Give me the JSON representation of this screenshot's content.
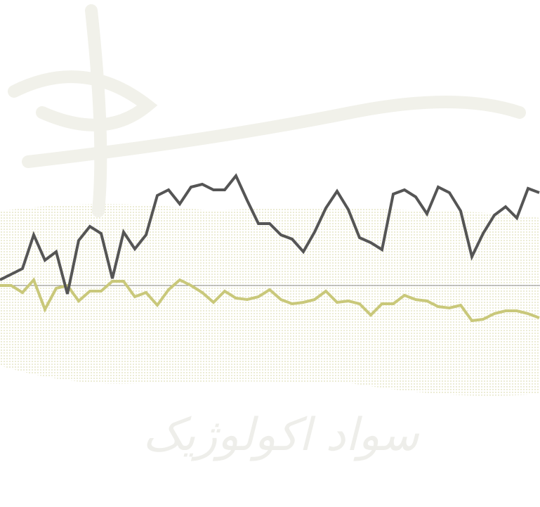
{
  "chart_data": {
    "type": "line",
    "watermark": "سواد اکولوژیک",
    "categories": [
      null,
      null,
      null,
      null,
      null,
      null,
      null,
      null,
      null,
      null,
      null,
      null,
      null,
      null,
      null,
      null,
      null,
      null,
      null,
      null,
      null,
      null,
      null,
      null,
      null,
      null,
      null,
      null,
      null,
      null,
      null,
      null,
      null,
      null,
      null,
      null,
      null,
      null,
      null,
      null,
      null,
      null,
      null,
      null,
      null,
      null,
      null,
      null,
      null
    ],
    "series": [
      {
        "color": "#555555",
        "values": [
          0.8,
          1.6,
          2.4,
          7.2,
          3.6,
          4.8,
          -1.2,
          6.4,
          8.4,
          7.4,
          1.0,
          7.6,
          5.2,
          7.2,
          12.8,
          13.6,
          11.6,
          14.0,
          14.4,
          13.6,
          13.6,
          15.6,
          12.1,
          8.8,
          8.8,
          7.2,
          6.6,
          4.8,
          7.6,
          11.0,
          13.4,
          10.8,
          6.8,
          6.1,
          5.1,
          13.0,
          13.6,
          12.6,
          10.2,
          14.0,
          13.2,
          10.6,
          4.1,
          7.4,
          10.0,
          11.2,
          9.6,
          13.8,
          13.2
        ]
      },
      {
        "color": "#c9c87a",
        "values": [
          0,
          0,
          -1.0,
          0.8,
          -3.4,
          -0.4,
          0,
          -2.2,
          -0.8,
          -0.8,
          0.6,
          0.6,
          -1.6,
          -1.0,
          -2.8,
          -0.6,
          0.8,
          0,
          -1.0,
          -2.4,
          -0.8,
          -1.8,
          -2.0,
          -1.6,
          -0.6,
          -2.0,
          -2.6,
          -2.4,
          -2.0,
          -0.8,
          -2.4,
          -2.2,
          -2.6,
          -4.2,
          -2.6,
          -2.6,
          -1.4,
          -2.0,
          -2.2,
          -3.0,
          -3.2,
          -2.8,
          -5.0,
          -4.8,
          -4.0,
          -3.6,
          -3.6,
          -4.0,
          -4.6
        ]
      }
    ],
    "ylim": [
      -31.5,
      40.6
    ],
    "hline": 0
  }
}
